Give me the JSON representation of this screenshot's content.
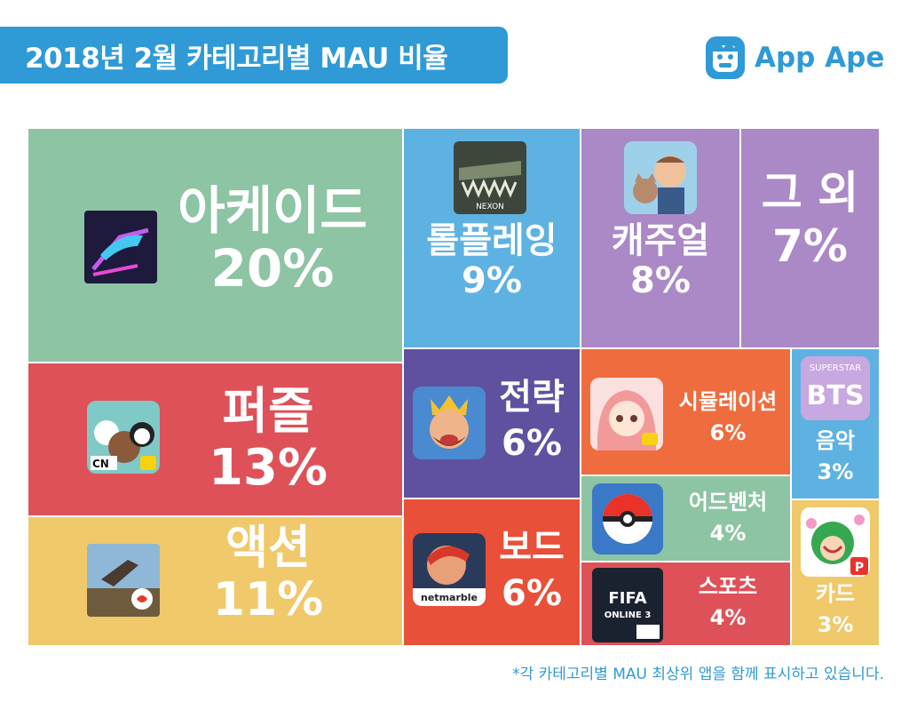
{
  "header": {
    "title": "2018년 2월 카테고리별 MAU 비율",
    "logo_text": "App Ape"
  },
  "colors": {
    "accent": "#2f9ad6",
    "arcade": "#8dc4a4",
    "puzzle": "#de5158",
    "action": "#f0c96b",
    "roleplay": "#5eb2e2",
    "casual": "#aa89c6",
    "other": "#aa89c6",
    "strategy": "#5f519f",
    "board": "#e8503a",
    "simulation": "#ef6c3e",
    "adventure": "#8dc4a4",
    "sports": "#de5158",
    "music": "#5eb2e2",
    "card": "#f0c96b"
  },
  "chart_data": {
    "type": "treemap",
    "title": "2018년 2월 카테고리별 MAU 비율",
    "unit": "%",
    "categories": [
      {
        "key": "arcade",
        "name": "아케이드",
        "percent": 20,
        "label": "20%"
      },
      {
        "key": "puzzle",
        "name": "퍼즐",
        "percent": 13,
        "label": "13%"
      },
      {
        "key": "action",
        "name": "액션",
        "percent": 11,
        "label": "11%"
      },
      {
        "key": "roleplay",
        "name": "롤플레잉",
        "percent": 9,
        "label": "9%"
      },
      {
        "key": "casual",
        "name": "캐주얼",
        "percent": 8,
        "label": "8%"
      },
      {
        "key": "other",
        "name": "그 외",
        "percent": 7,
        "label": "7%"
      },
      {
        "key": "strategy",
        "name": "전략",
        "percent": 6,
        "label": "6%"
      },
      {
        "key": "board",
        "name": "보드",
        "percent": 6,
        "label": "6%"
      },
      {
        "key": "simulation",
        "name": "시뮬레이션",
        "percent": 6,
        "label": "6%"
      },
      {
        "key": "adventure",
        "name": "어드벤처",
        "percent": 4,
        "label": "4%"
      },
      {
        "key": "sports",
        "name": "스포츠",
        "percent": 4,
        "label": "4%"
      },
      {
        "key": "music",
        "name": "음악",
        "percent": 3,
        "label": "3%"
      },
      {
        "key": "card",
        "name": "카드",
        "percent": 3,
        "label": "3%"
      }
    ]
  },
  "icons": {
    "arcade": "neon-car-game-icon",
    "puzzle": "bears-cartoon-game-icon",
    "action": "shooter-game-icon",
    "roleplay": "crocodile-monster-game-icon",
    "casual": "butler-with-cat-game-icon",
    "strategy": "king-character-game-icon",
    "board": "hero-board-game-icon",
    "simulation": "anime-girl-game-icon",
    "adventure": "pokeball-game-icon",
    "sports": "fifa-online-game-icon",
    "music": "bts-superstar-game-icon",
    "card": "green-character-card-game-icon"
  },
  "icon_text": {
    "roleplay": "NEXON",
    "board": "netmarble",
    "sports_top": "FIFA",
    "sports_bottom": "ONLINE 3",
    "music_top": "SUPERSTAR",
    "music_bottom": "BTS",
    "puzzle": "CN",
    "card": "P"
  },
  "footnote": "*각 카테고리별 MAU 최상위 앱을 함께 표시하고 있습니다."
}
